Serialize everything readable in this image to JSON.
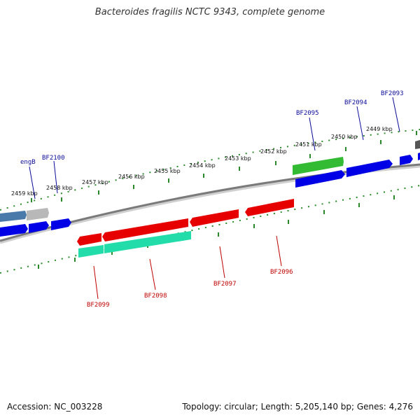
{
  "title": "Bacteroides fragilis NCTC 9343, complete genome",
  "footer": {
    "accession": "Accession: NC_003228",
    "summary": "Topology: circular; Length: 5,205,140 bp; Genes: 4,276"
  },
  "ticks": [
    {
      "label": "2459 kbp"
    },
    {
      "label": "2458 kbp"
    },
    {
      "label": "2457 kbp"
    },
    {
      "label": "2456 kbp"
    },
    {
      "label": "2455 kbp"
    },
    {
      "label": "2454 kbp"
    },
    {
      "label": "2453 kbp"
    },
    {
      "label": "2452 kbp"
    },
    {
      "label": "2451 kbp"
    },
    {
      "label": "2450 kbp"
    },
    {
      "label": "2449 kbp"
    }
  ],
  "gene_labels_top": [
    {
      "name": "engB"
    },
    {
      "name": "BF2100"
    },
    {
      "name": "BF2095"
    },
    {
      "name": "BF2094"
    },
    {
      "name": "BF2093"
    }
  ],
  "gene_labels_bottom": [
    {
      "name": "BF2099"
    },
    {
      "name": "BF2098"
    },
    {
      "name": "BF2097"
    },
    {
      "name": "BF2096"
    }
  ],
  "colors": {
    "forward_cds": "#0000e6",
    "reverse_cds": "#e60000",
    "rna_green": "#33bb33",
    "teal": "#22ddaa",
    "backbone": "#808080",
    "tick": "#2a8a2a"
  }
}
